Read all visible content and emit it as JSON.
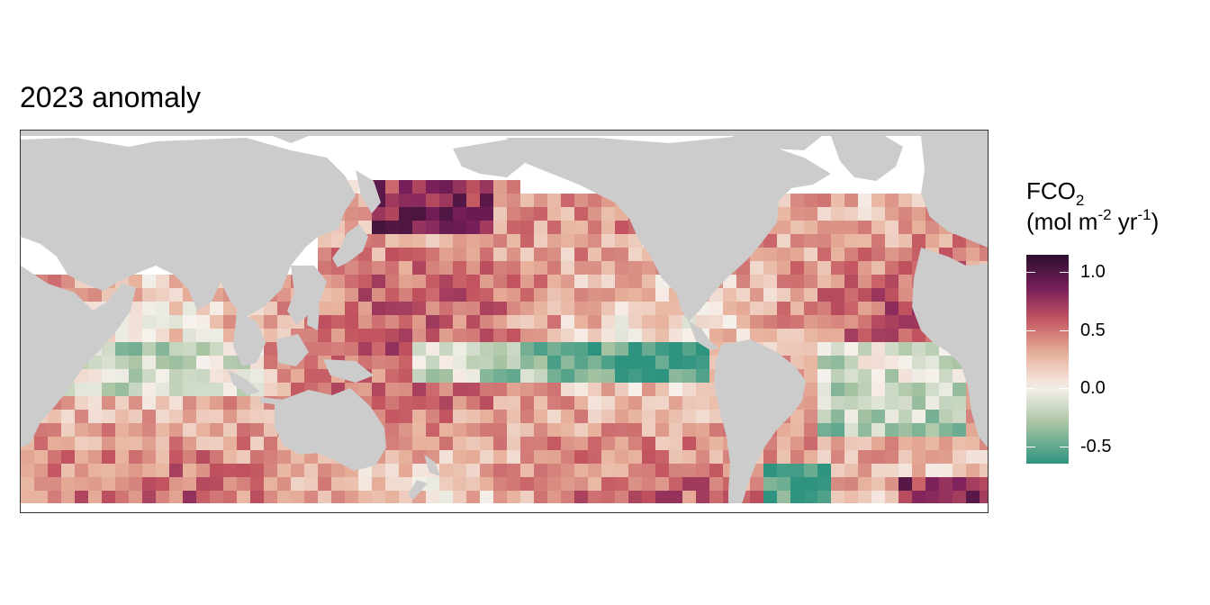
{
  "title": "2023 anomaly",
  "legend": {
    "title_main": "FCO",
    "title_sub": "2",
    "unit_open": "(mol m",
    "unit_sup1": "-2",
    "unit_mid": " yr",
    "unit_sup2": "-1",
    "unit_close": ")",
    "range": [
      -0.65,
      1.15
    ],
    "ticks": [
      {
        "value": 1.0,
        "label": "1.0"
      },
      {
        "value": 0.5,
        "label": "0.5"
      },
      {
        "value": 0.0,
        "label": "0.0"
      },
      {
        "value": -0.5,
        "label": "-0.5"
      }
    ],
    "colors": {
      "high": "#2d0f2e",
      "mid_high": "#7a1f5c",
      "mid": "#c3545f",
      "low_mid": "#e7b09a",
      "zero": "#f6f1ec",
      "low": "#a9c4a3",
      "lowest": "#2e9480"
    }
  },
  "map": {
    "land_color": "#cccccc",
    "ocean_nodata_color": "#ffffff",
    "lon_range": [
      20,
      380
    ],
    "lat_range": [
      -60,
      82
    ],
    "cell_deg": 5
  }
}
